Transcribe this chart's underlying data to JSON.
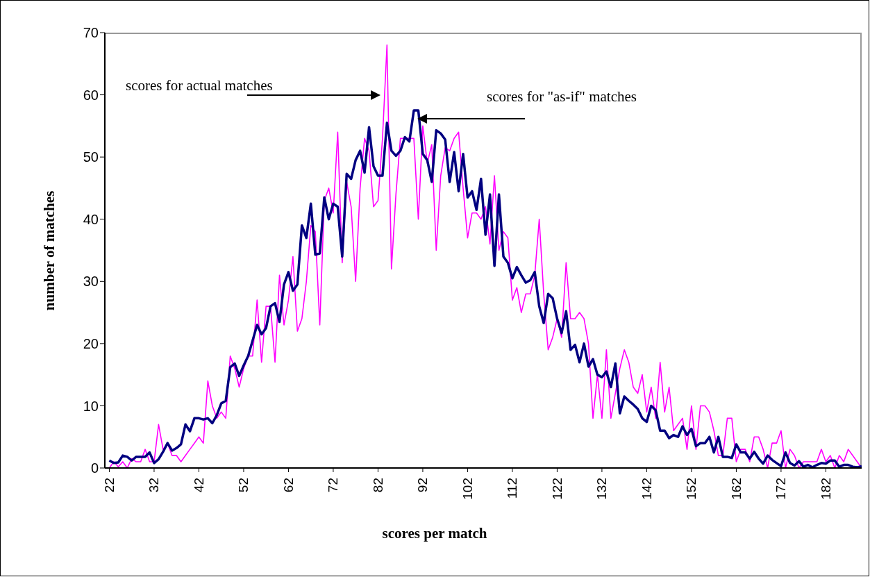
{
  "chart_data": {
    "type": "line",
    "xlabel": "scores per match",
    "ylabel": "number of matches",
    "x": [
      22,
      23,
      24,
      25,
      26,
      27,
      28,
      29,
      30,
      31,
      32,
      33,
      34,
      35,
      36,
      37,
      38,
      39,
      40,
      41,
      42,
      43,
      44,
      45,
      46,
      47,
      48,
      49,
      50,
      51,
      52,
      53,
      54,
      55,
      56,
      57,
      58,
      59,
      60,
      61,
      62,
      63,
      64,
      65,
      66,
      67,
      68,
      69,
      70,
      71,
      72,
      73,
      74,
      75,
      76,
      77,
      78,
      79,
      80,
      81,
      82,
      83,
      84,
      85,
      86,
      87,
      88,
      89,
      90,
      91,
      92,
      93,
      94,
      95,
      96,
      97,
      98,
      99,
      100,
      101,
      102,
      103,
      104,
      105,
      106,
      107,
      108,
      109,
      110,
      111,
      112,
      113,
      114,
      115,
      116,
      117,
      118,
      119,
      120,
      121,
      122,
      123,
      124,
      125,
      126,
      127,
      128,
      129,
      130,
      131,
      132,
      133,
      134,
      135,
      136,
      137,
      138,
      139,
      140,
      141,
      142,
      143,
      144,
      145,
      146,
      147,
      148,
      149,
      150,
      151,
      152,
      153,
      154,
      155,
      156,
      157,
      158,
      159,
      160,
      161,
      162,
      163,
      164,
      165,
      166,
      167,
      168,
      169,
      170,
      171,
      172,
      173,
      174,
      175,
      176,
      177,
      178,
      179,
      180,
      181,
      182,
      183,
      184,
      185,
      186,
      187,
      188,
      189,
      190
    ],
    "series": [
      {
        "color": "#ff00ff",
        "values": [
          0,
          1,
          0.2,
          1,
          0,
          1.5,
          1,
          1,
          3,
          1,
          1,
          7,
          3,
          4,
          2,
          2,
          1,
          2,
          3,
          4,
          5,
          4,
          14,
          10,
          8,
          9,
          8,
          18,
          16,
          13,
          16,
          18,
          18,
          27,
          17,
          26,
          26,
          17,
          31,
          23,
          27,
          34,
          22,
          24,
          30,
          39,
          38,
          23,
          43,
          45,
          41,
          54,
          33,
          46,
          42,
          30,
          45,
          53,
          51,
          42,
          43,
          53,
          68,
          32,
          44,
          53,
          53,
          53,
          53,
          40,
          55,
          49,
          52,
          35,
          47,
          51.5,
          51,
          53,
          54,
          45,
          37,
          41,
          41,
          40,
          42,
          36,
          47,
          35,
          38,
          37,
          27,
          29,
          25,
          28,
          28,
          31,
          40,
          28,
          19,
          21,
          24,
          21,
          33,
          24,
          24,
          25,
          24,
          20,
          8,
          15,
          8,
          19,
          8,
          12,
          16,
          19,
          17,
          13,
          12,
          15,
          9,
          13,
          8,
          17,
          9,
          13,
          6,
          7,
          8,
          3,
          10,
          3,
          10,
          10,
          9,
          6,
          2,
          2,
          8,
          8,
          1,
          3,
          3,
          1,
          5,
          5,
          3,
          0,
          4,
          4,
          6,
          0,
          3,
          2,
          0,
          1,
          1,
          1,
          1,
          3,
          1,
          2,
          0,
          2,
          1,
          3,
          2,
          1,
          0
        ]
      },
      {
        "color": "#000080",
        "values": [
          1.2,
          0.8,
          0.9,
          2,
          1.8,
          1.2,
          1.8,
          1.8,
          1.8,
          2.5,
          0.8,
          1.4,
          2.6,
          4,
          2.8,
          3.2,
          3.8,
          7,
          5.9,
          8,
          8,
          7.8,
          8,
          7.2,
          8.5,
          10.4,
          10.8,
          16.2,
          16.8,
          14.8,
          16.5,
          18,
          20.5,
          23,
          21.5,
          22.5,
          26,
          26.5,
          23.5,
          29.5,
          31.5,
          28.5,
          29.5,
          39,
          37,
          42.5,
          34.3,
          34.5,
          43.5,
          40,
          42.5,
          42,
          34,
          47.3,
          46.5,
          49.5,
          51,
          47.5,
          54.8,
          48.5,
          47,
          47,
          55.5,
          51,
          50.2,
          51,
          53.2,
          52.5,
          57.5,
          57.5,
          50.5,
          49.5,
          46,
          54.3,
          53.8,
          52.8,
          46,
          50.8,
          44.5,
          50.5,
          43.5,
          44.5,
          41.5,
          46.5,
          37.5,
          44,
          32.5,
          44,
          34,
          33,
          30.5,
          32.3,
          31,
          29.8,
          30.2,
          31.5,
          26,
          23.3,
          28,
          27.3,
          24,
          21.7,
          25.2,
          19,
          19.8,
          17,
          20,
          16.3,
          17.5,
          15,
          14.6,
          15.5,
          13,
          16.8,
          8.8,
          11.5,
          10.8,
          10.2,
          9.5,
          8,
          7.4,
          10,
          9.3,
          6,
          6,
          4.8,
          5.3,
          5,
          6.7,
          5.3,
          6.3,
          3.5,
          4,
          4,
          5,
          2.5,
          5,
          1.8,
          1.8,
          1.6,
          3.8,
          2.5,
          2.5,
          1.5,
          2.6,
          1.5,
          0.7,
          2,
          1.3,
          0.8,
          0.3,
          2.5,
          0.8,
          0.4,
          1.1,
          0.2,
          0.5,
          0.1,
          0.5,
          0.8,
          0.7,
          1.2,
          1.2,
          0.2,
          0.5,
          0.5,
          0.2,
          0.1,
          0.3
        ]
      }
    ],
    "xlim": [
      21,
      190
    ],
    "xticks": [
      22,
      32,
      42,
      52,
      62,
      72,
      82,
      92,
      102,
      112,
      122,
      132,
      142,
      152,
      162,
      172,
      182
    ],
    "ylim": [
      0,
      70
    ],
    "yticks": [
      0,
      10,
      20,
      30,
      40,
      50,
      60,
      70
    ],
    "annotations": [
      "scores for actual matches",
      "scores for \"as-if\" matches"
    ]
  }
}
